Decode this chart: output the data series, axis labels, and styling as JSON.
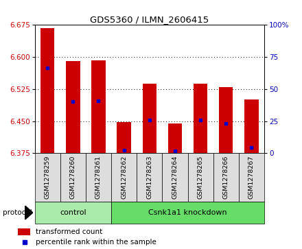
{
  "title": "GDS5360 / ILMN_2606415",
  "samples": [
    "GSM1278259",
    "GSM1278260",
    "GSM1278261",
    "GSM1278262",
    "GSM1278263",
    "GSM1278264",
    "GSM1278265",
    "GSM1278266",
    "GSM1278267"
  ],
  "bar_tops_actual": [
    6.668,
    6.59,
    6.592,
    6.447,
    6.538,
    6.445,
    6.538,
    6.53,
    6.5
  ],
  "bar_bottom": 6.375,
  "blue_values": [
    6.575,
    6.495,
    6.497,
    6.382,
    6.453,
    6.38,
    6.453,
    6.445,
    6.388
  ],
  "ylim": [
    6.375,
    6.675
  ],
  "yticks": [
    6.375,
    6.45,
    6.525,
    6.6,
    6.675
  ],
  "right_yticks": [
    0,
    25,
    50,
    75,
    100
  ],
  "groups": [
    {
      "label": "control",
      "start": 0,
      "end": 3,
      "color": "#aaeaaa"
    },
    {
      "label": "Csnk1a1 knockdown",
      "start": 3,
      "end": 9,
      "color": "#66dd66"
    }
  ],
  "bar_color": "#cc0000",
  "blue_color": "#0000cc",
  "sample_bg": "#dddddd",
  "left_label_color": "#cc0000",
  "right_label_color": "#0000bb",
  "bar_width": 0.55,
  "protocol_label": "protocol",
  "legend_items": [
    "transformed count",
    "percentile rank within the sample"
  ]
}
